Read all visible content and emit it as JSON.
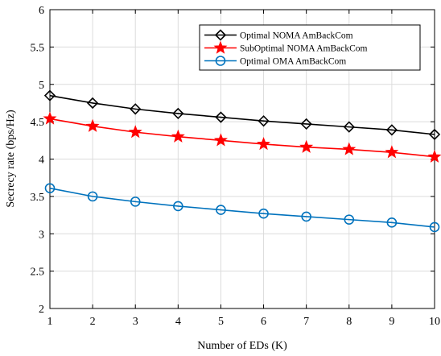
{
  "chart_data": {
    "type": "line",
    "title": "",
    "xlabel": "Number of EDs (K)",
    "ylabel": "Secrecy rate (bps/Hz)",
    "xlim": [
      1,
      10
    ],
    "ylim": [
      2,
      6
    ],
    "x": [
      1,
      2,
      3,
      4,
      5,
      6,
      7,
      8,
      9,
      10
    ],
    "xticks": [
      1,
      2,
      3,
      4,
      5,
      6,
      7,
      8,
      9,
      10
    ],
    "yticks": [
      2,
      2.5,
      3,
      3.5,
      4,
      4.5,
      5,
      5.5,
      6
    ],
    "xtick_labels": [
      "1",
      "2",
      "3",
      "4",
      "5",
      "6",
      "7",
      "8",
      "9",
      "10"
    ],
    "ytick_labels": [
      "2",
      "2.5",
      "3",
      "3.5",
      "4",
      "4.5",
      "5",
      "5.5",
      "6"
    ],
    "grid": true,
    "legend_position": "top-right",
    "series": [
      {
        "name": "Optimal NOMA AmBackCom",
        "color": "#000000",
        "marker": "diamond",
        "values": [
          4.85,
          4.75,
          4.67,
          4.61,
          4.56,
          4.51,
          4.47,
          4.43,
          4.39,
          4.33
        ]
      },
      {
        "name": "SubOptimal NOMA AmBackCom",
        "color": "#ff0000",
        "marker": "star",
        "values": [
          4.54,
          4.44,
          4.36,
          4.3,
          4.25,
          4.2,
          4.16,
          4.13,
          4.09,
          4.03
        ]
      },
      {
        "name": "Optimal OMA AmBackCom",
        "color": "#0072bd",
        "marker": "circle",
        "values": [
          3.61,
          3.5,
          3.43,
          3.37,
          3.32,
          3.27,
          3.23,
          3.19,
          3.15,
          3.09
        ]
      }
    ]
  }
}
